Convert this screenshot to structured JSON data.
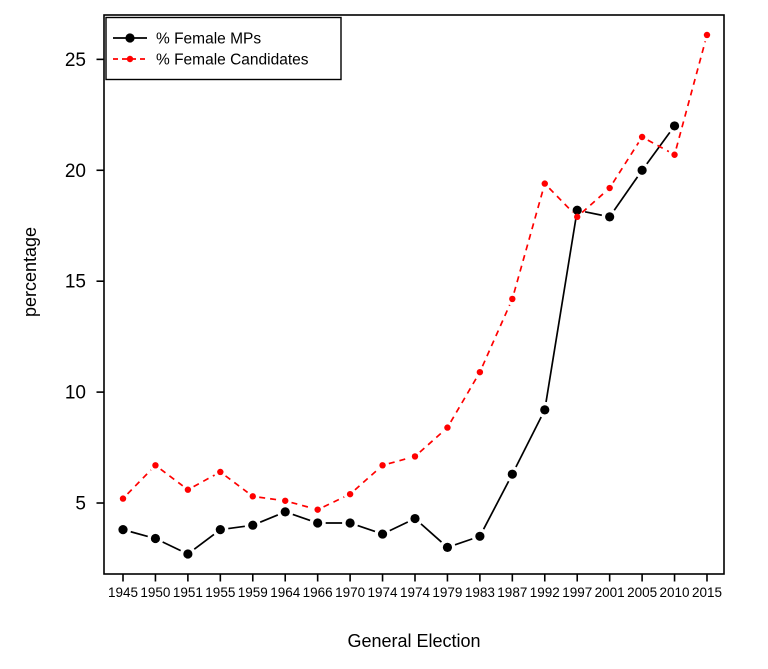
{
  "figure": {
    "background_color": "#ffffff",
    "plot_border_color": "#000000"
  },
  "chart_data": {
    "type": "line",
    "title": "",
    "xlabel": "General Election",
    "ylabel": "percentage",
    "categories": [
      "1945",
      "1950",
      "1951",
      "1955",
      "1959",
      "1964",
      "1966",
      "1970",
      "1974",
      "1974",
      "1979",
      "1983",
      "1987",
      "1992",
      "1997",
      "2001",
      "2005",
      "2010",
      "2015"
    ],
    "series": [
      {
        "name": "% Female MPs",
        "color": "#000000",
        "line_style": "solid",
        "marker": "filled-circle",
        "marker_size": "large",
        "values": [
          3.8,
          3.4,
          2.7,
          3.8,
          4.0,
          4.6,
          4.1,
          4.1,
          3.6,
          4.3,
          3.0,
          3.5,
          6.3,
          9.2,
          18.2,
          17.9,
          20.0,
          22.0,
          null
        ]
      },
      {
        "name": "% Female Candidates",
        "color": "#FF0000",
        "line_style": "dashed",
        "marker": "filled-circle",
        "marker_size": "small",
        "values": [
          5.2,
          6.7,
          5.6,
          6.4,
          5.3,
          5.1,
          4.7,
          5.4,
          6.7,
          7.1,
          8.4,
          10.9,
          14.2,
          19.4,
          17.9,
          19.2,
          21.5,
          20.7,
          26.1
        ]
      }
    ],
    "y_ticks": [
      5,
      10,
      15,
      20,
      25
    ],
    "ylim": [
      1.8,
      27.0
    ],
    "grid": false,
    "legend_position": "top-left",
    "draw_style": "lines-and-markers with gaps (R type='b')"
  }
}
